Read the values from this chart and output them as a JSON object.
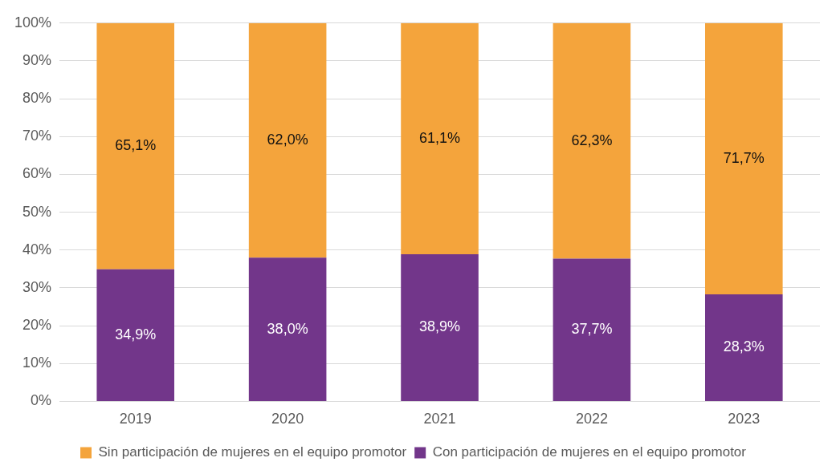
{
  "chart_data": {
    "type": "bar",
    "stacked": true,
    "categories": [
      "2019",
      "2020",
      "2021",
      "2022",
      "2023"
    ],
    "series": [
      {
        "name": "Con participación de mujeres en el equipo promotor",
        "color": "#72368a",
        "values": [
          34.9,
          38.0,
          38.9,
          37.7,
          28.3
        ],
        "value_labels": [
          "34,9%",
          "38,0%",
          "38,9%",
          "37,7%",
          "28,3%"
        ]
      },
      {
        "name": "Sin participación de mujeres en el equipo promotor",
        "color": "#f4a43c",
        "values": [
          65.1,
          62.0,
          61.1,
          62.3,
          71.7
        ],
        "value_labels": [
          "65,1%",
          "62,0%",
          "61,1%",
          "62,3%",
          "71,7%"
        ]
      }
    ],
    "ylim": [
      0,
      100
    ],
    "yticks": [
      {
        "value": 0,
        "label": "0%"
      },
      {
        "value": 10,
        "label": "10%"
      },
      {
        "value": 20,
        "label": "20%"
      },
      {
        "value": 30,
        "label": "30%"
      },
      {
        "value": 40,
        "label": "40%"
      },
      {
        "value": 50,
        "label": "50%"
      },
      {
        "value": 60,
        "label": "60%"
      },
      {
        "value": 70,
        "label": "70%"
      },
      {
        "value": 80,
        "label": "80%"
      },
      {
        "value": 90,
        "label": "90%"
      },
      {
        "value": 100,
        "label": "100%"
      }
    ],
    "grid": "y",
    "legend": "bottom"
  }
}
